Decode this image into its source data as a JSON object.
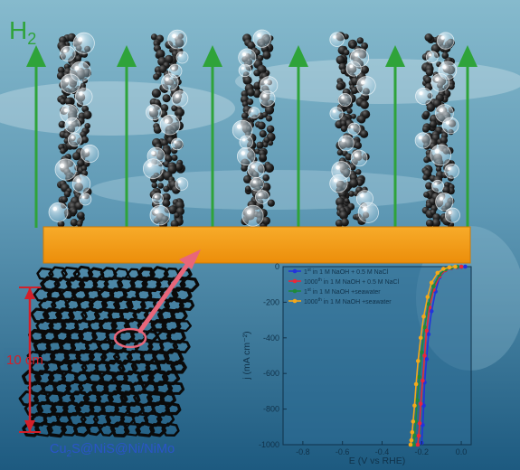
{
  "gas_label": {
    "main": "H",
    "sub": "2"
  },
  "scale_label": "10 cm",
  "material_label": {
    "parts": [
      "Cu",
      "2",
      "S@NiS@Ni/NiMo"
    ]
  },
  "colors": {
    "background_top": "#7fb4c8",
    "background_bottom": "#1f5e84",
    "substrate": "#f29a12",
    "arrow_green": "#2fa33a",
    "pointer_red": "#e8667a",
    "scale_red": "#d3202a",
    "material_label": "#2a55c8"
  },
  "chart_data": {
    "type": "line",
    "title": "",
    "xlabel": "E (V vs RHE)",
    "ylabel": "j (mA cm⁻²)",
    "xlim": [
      -0.9,
      0.05
    ],
    "ylim": [
      -1000,
      0
    ],
    "x_ticks": [
      "-0.8",
      "-0.6",
      "-0.4",
      "-0.2",
      "0.0"
    ],
    "x_tick_values": [
      -0.8,
      -0.6,
      -0.4,
      -0.2,
      0.0
    ],
    "y_ticks": [
      "0",
      "-200",
      "-400",
      "-600",
      "-800",
      "-1000"
    ],
    "y_tick_values": [
      0,
      -200,
      -400,
      -600,
      -800,
      -1000
    ],
    "legend_position": "top-left",
    "series": [
      {
        "name": "1st in 1 M NaOH + 0.5 M NaCl",
        "name_parts": [
          "1",
          "st",
          " in 1 M NaOH + 0.5 M NaCl"
        ],
        "color": "#2233dd",
        "x": [
          0.02,
          0.0,
          -0.02,
          -0.05,
          -0.08,
          -0.11,
          -0.13,
          -0.15,
          -0.165,
          -0.175,
          -0.185,
          -0.19,
          -0.195,
          -0.2
        ],
        "y": [
          0,
          -1,
          -3,
          -8,
          -20,
          -60,
          -140,
          -250,
          -380,
          -520,
          -650,
          -780,
          -890,
          -990
        ]
      },
      {
        "name": "1000th in 1 M NaOH + 0.5 M NaCl",
        "name_parts": [
          "1000",
          "th",
          " in 1 M NaOH + 0.5 M NaCl"
        ],
        "color": "#e8283a",
        "x": [
          0.0,
          -0.02,
          -0.05,
          -0.08,
          -0.11,
          -0.14,
          -0.16,
          -0.175,
          -0.185,
          -0.195,
          -0.205,
          -0.21,
          -0.215,
          -0.22
        ],
        "y": [
          0,
          -2,
          -7,
          -20,
          -55,
          -130,
          -230,
          -360,
          -500,
          -640,
          -770,
          -880,
          -950,
          -1000
        ]
      },
      {
        "name": "1st in 1 M NaOH +seawater",
        "name_parts": [
          "1",
          "st",
          " in 1 M NaOH +seawater"
        ],
        "color": "#1e8a3a",
        "x": [
          -0.02,
          -0.05,
          -0.08,
          -0.11,
          -0.14,
          -0.165,
          -0.185,
          -0.2,
          -0.212,
          -0.222,
          -0.23,
          -0.236,
          -0.24
        ],
        "y": [
          0,
          -5,
          -15,
          -45,
          -110,
          -210,
          -340,
          -480,
          -620,
          -750,
          -870,
          -950,
          -1000
        ]
      },
      {
        "name": "1000th in 1 M NaOH +seawater",
        "name_parts": [
          "1000",
          "th",
          " in 1 M NaOH +seawater"
        ],
        "color": "#f5a81a",
        "x": [
          -0.03,
          -0.06,
          -0.09,
          -0.12,
          -0.15,
          -0.17,
          -0.19,
          -0.205,
          -0.218,
          -0.228,
          -0.236,
          -0.243,
          -0.248,
          -0.252,
          -0.256
        ],
        "y": [
          0,
          -4,
          -12,
          -35,
          -90,
          -170,
          -280,
          -400,
          -530,
          -660,
          -780,
          -870,
          -930,
          -975,
          -1000
        ]
      }
    ]
  }
}
